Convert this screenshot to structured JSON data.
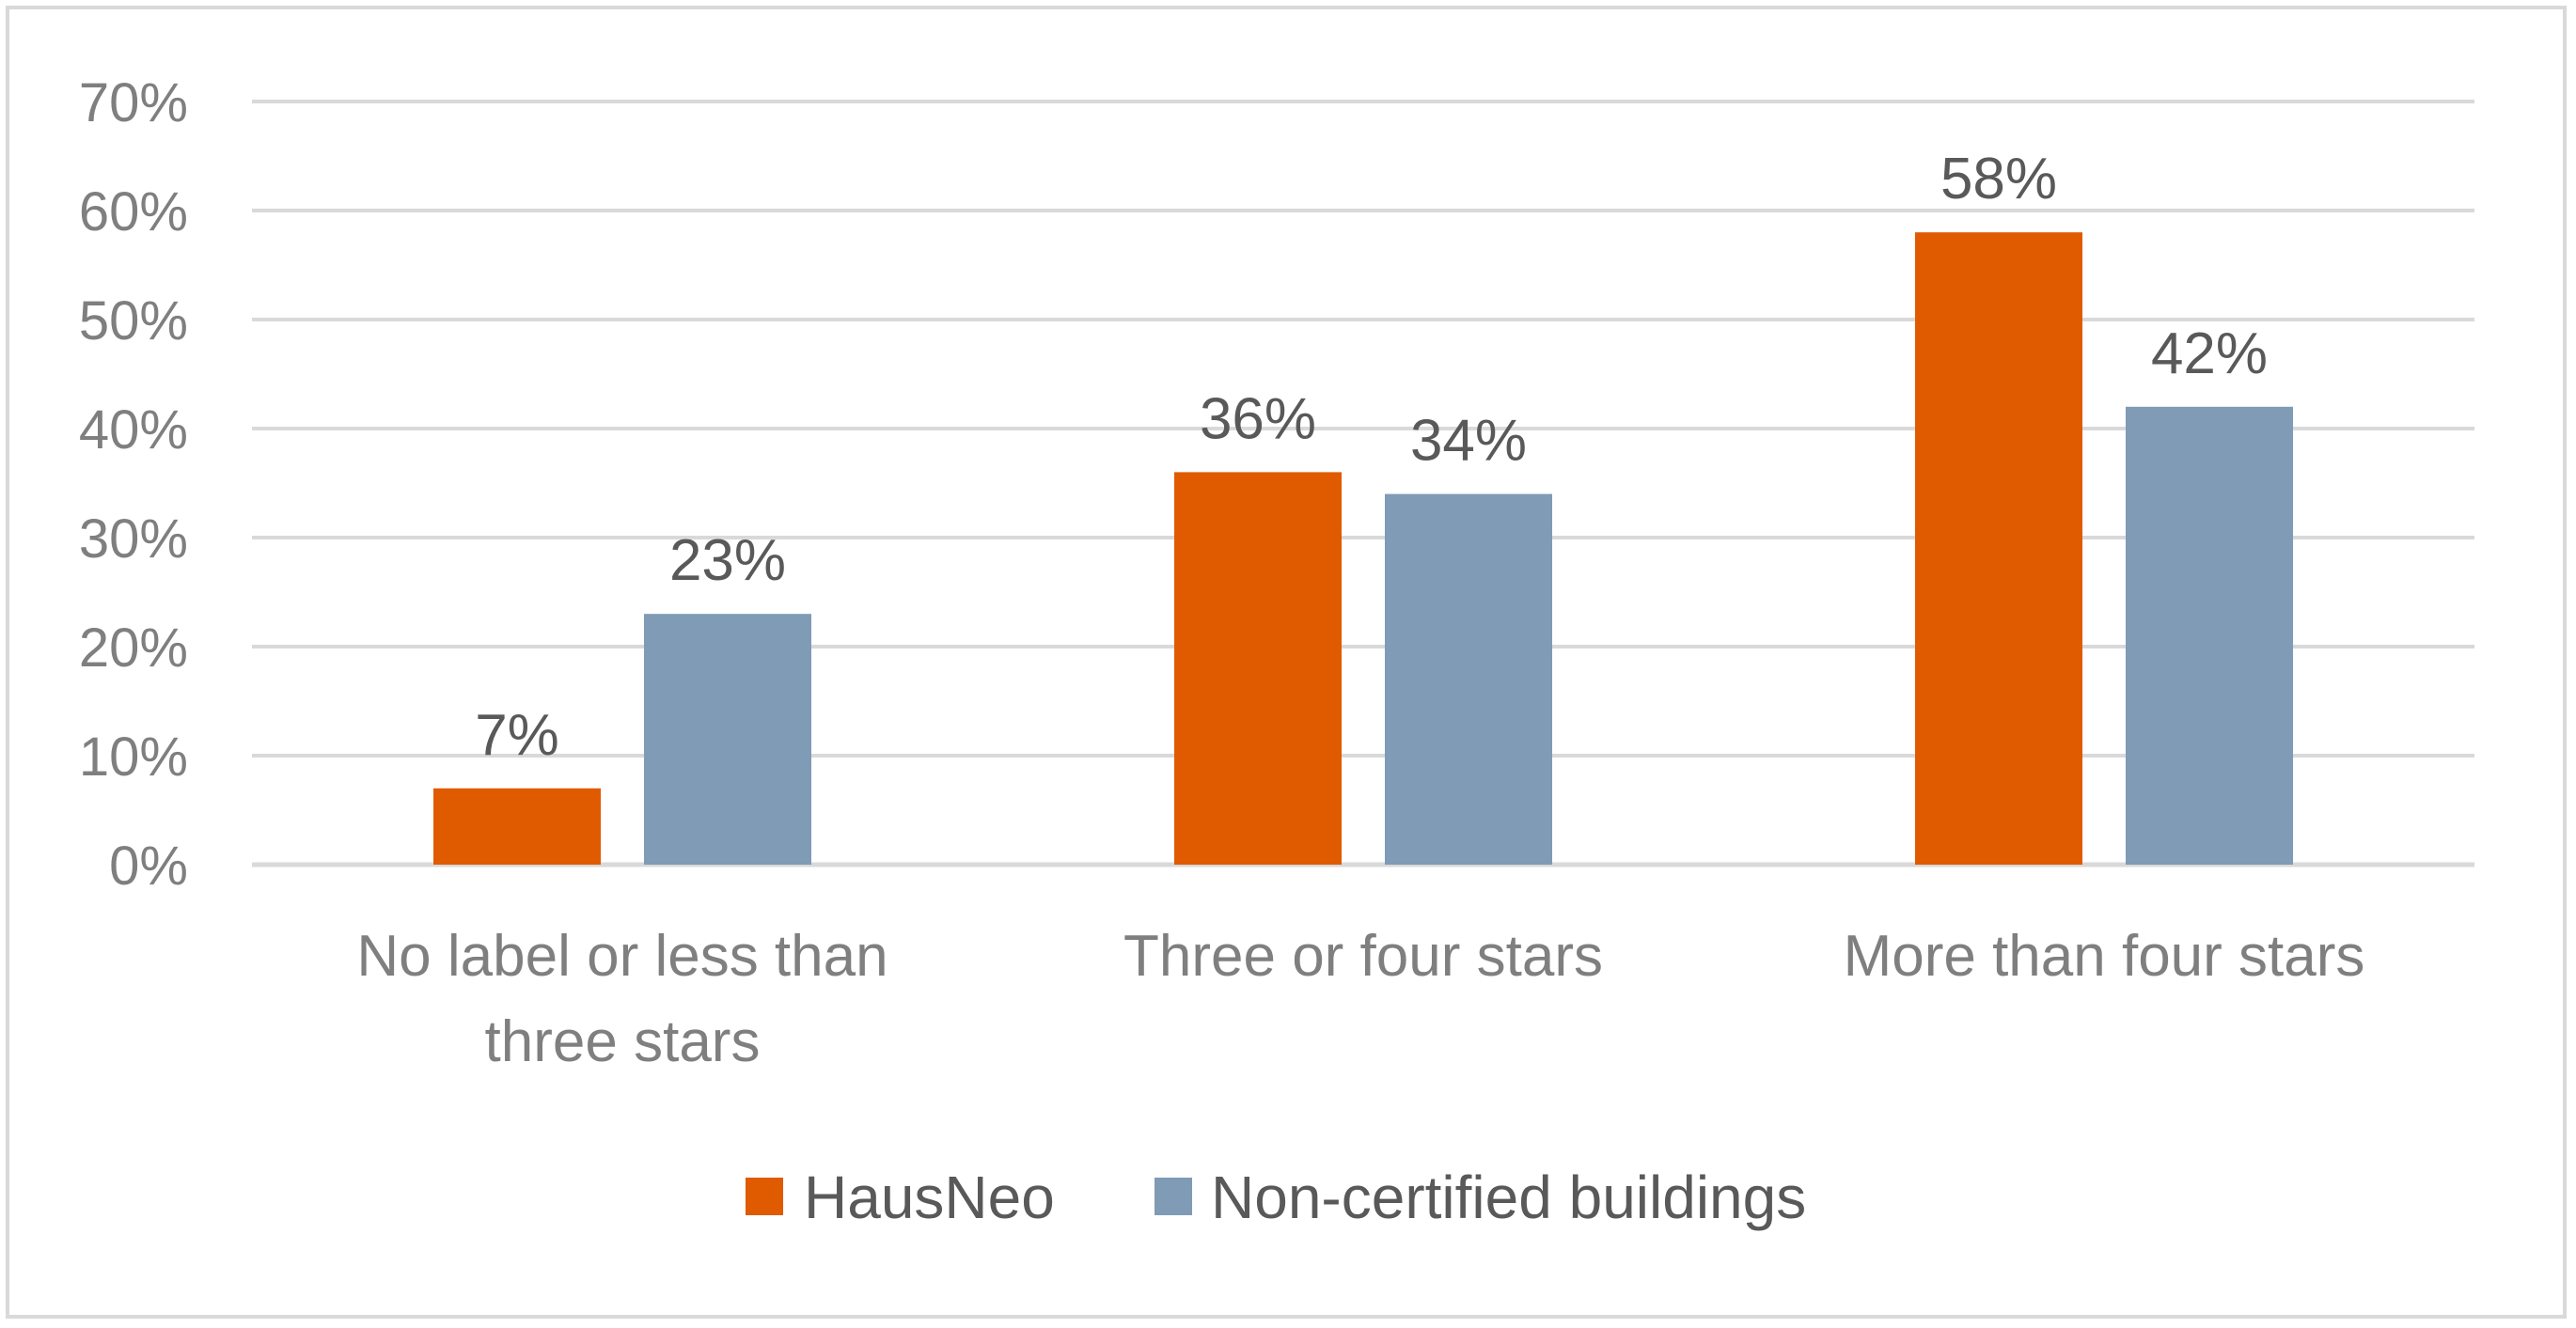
{
  "chart_data": {
    "type": "bar",
    "categories": [
      [
        "No label or less than",
        "three stars"
      ],
      [
        "Three or four stars"
      ],
      [
        "More than four stars"
      ]
    ],
    "series": [
      {
        "name": "HausNeo",
        "values": [
          7,
          36,
          58
        ],
        "labels": [
          "7%",
          "36%",
          "58%"
        ],
        "color": "#e05a00"
      },
      {
        "name": "Non-certified buildings",
        "values": [
          23,
          34,
          42
        ],
        "labels": [
          "23%",
          "34%",
          "42%"
        ],
        "color": "#7f9bb5"
      }
    ],
    "yticks": [
      "0%",
      "10%",
      "20%",
      "30%",
      "40%",
      "50%",
      "60%",
      "70%"
    ],
    "ylim": [
      0,
      70
    ],
    "grid": true,
    "legend_position": "bottom",
    "gridline_color": "#d9d9d9",
    "title": "",
    "xlabel": "",
    "ylabel": ""
  }
}
